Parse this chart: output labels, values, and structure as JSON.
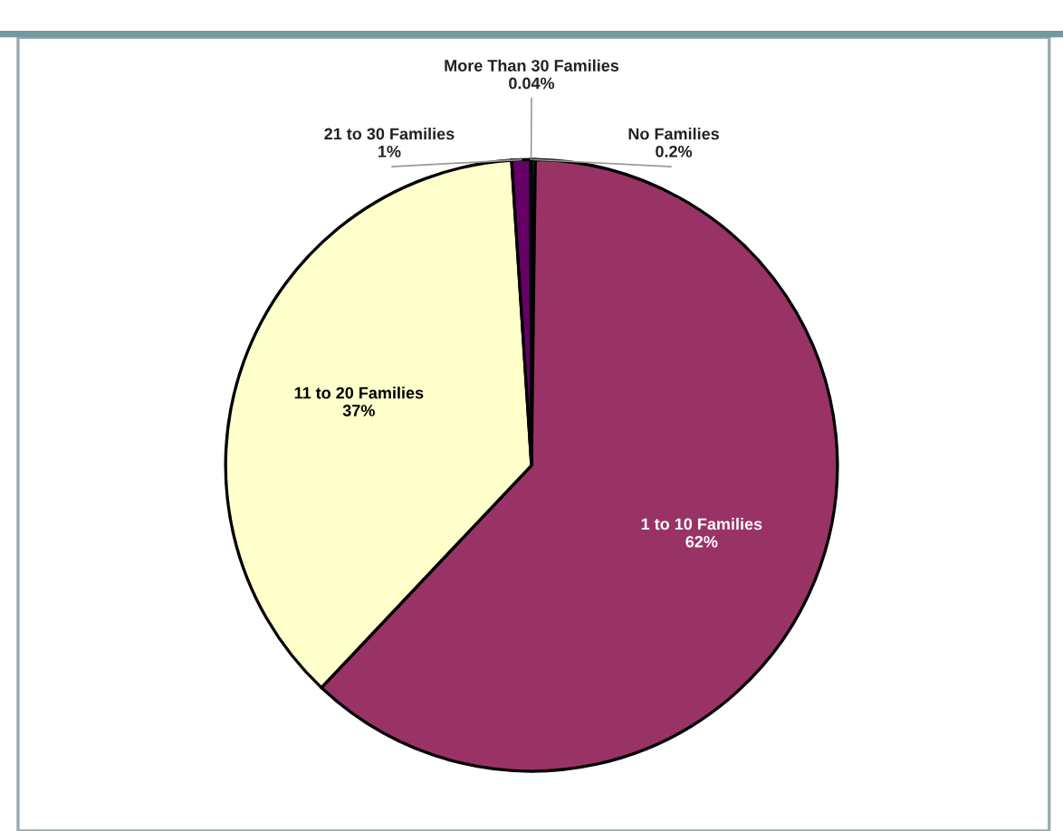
{
  "chart_data": {
    "type": "pie",
    "categories": [
      "No Families",
      "1 to 10 Families",
      "11 to 20 Families",
      "21 to 30 Families",
      "More Than 30 Families"
    ],
    "values": [
      0.2,
      62,
      37,
      1,
      0.04
    ],
    "colors": [
      "#6666cc",
      "#993366",
      "#ffffcc",
      "#660066",
      "#3366cc"
    ],
    "value_labels": [
      "0.2%",
      "62%",
      "37%",
      "1%",
      "0.04%"
    ],
    "legend": false
  }
}
